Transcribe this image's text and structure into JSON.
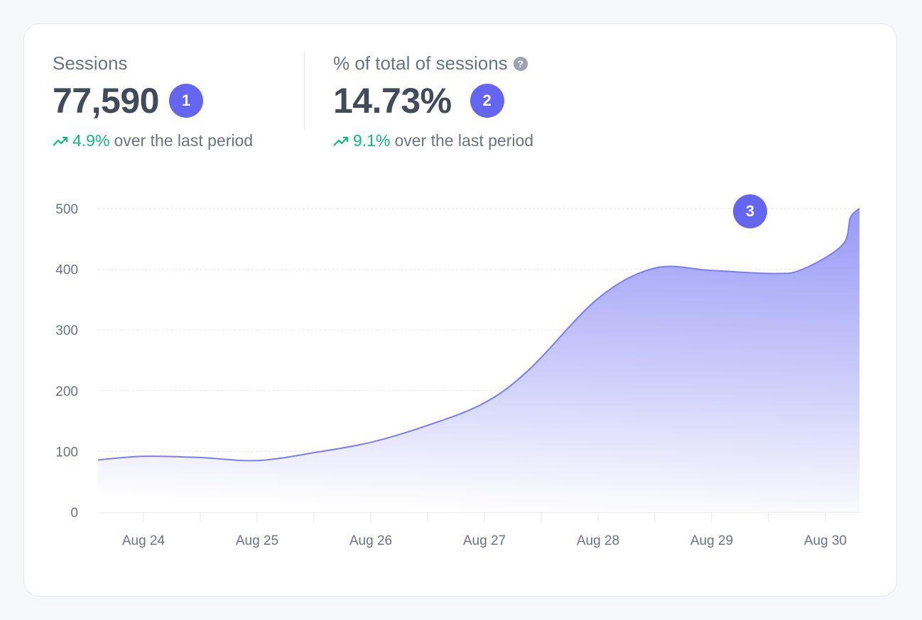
{
  "metrics": [
    {
      "label": "Sessions",
      "value": "77,590",
      "badge": "1",
      "change": "4.9%",
      "change_text": "over the last period"
    },
    {
      "label": "% of total of sessions",
      "help_icon": "?",
      "value": "14.73%",
      "badge": "2",
      "change": "9.1%",
      "change_text": "over the last period"
    }
  ],
  "chart_badge": "3",
  "colors": {
    "accent": "#6466f1",
    "line": "#7b7df0",
    "positive": "#10b981"
  },
  "chart_data": {
    "type": "area",
    "title": "",
    "xlabel": "",
    "ylabel": "",
    "ylim": [
      0,
      500
    ],
    "yticks": [
      0,
      100,
      200,
      300,
      400,
      500
    ],
    "xticklabels": [
      "Aug 24",
      "Aug 25",
      "Aug 26",
      "Aug 27",
      "Aug 28",
      "Aug 29",
      "Aug 30"
    ],
    "x_days_from_aug24": [
      -0.4,
      0,
      0.5,
      1,
      1.5,
      2,
      2.5,
      3,
      3.4,
      4,
      4.5,
      5,
      5.55,
      5.8,
      6.15,
      6.22,
      6.3
    ],
    "values": [
      86,
      92,
      90,
      85,
      98,
      115,
      143,
      180,
      236,
      352,
      402,
      398,
      393,
      400,
      440,
      485,
      500
    ],
    "grid": true
  }
}
